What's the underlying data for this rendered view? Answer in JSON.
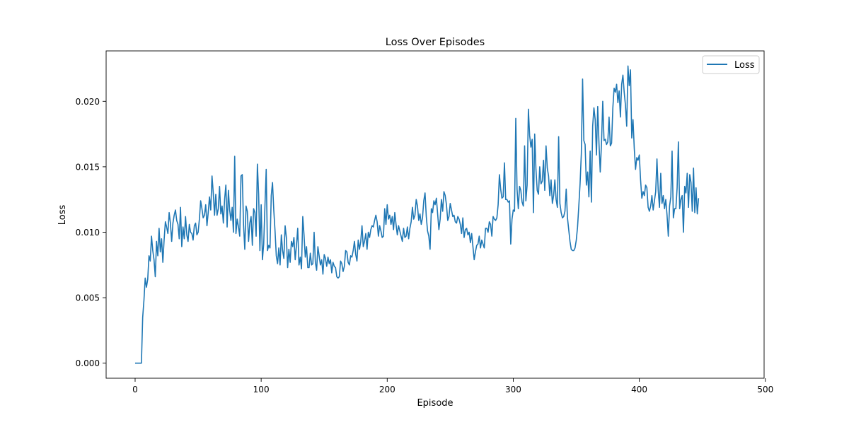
{
  "chart_data": {
    "type": "line",
    "title": "Loss Over Episodes",
    "xlabel": "Episode",
    "ylabel": "Loss",
    "xlim": [
      -23,
      499
    ],
    "ylim": [
      -0.00115,
      0.02385
    ],
    "xticks": [
      0,
      100,
      200,
      300,
      400,
      500
    ],
    "xtick_labels": [
      "0",
      "100",
      "200",
      "300",
      "400",
      "500"
    ],
    "yticks": [
      0.0,
      0.005,
      0.01,
      0.015,
      0.02
    ],
    "ytick_labels": [
      "0.000",
      "0.005",
      "0.010",
      "0.015",
      "0.020"
    ],
    "grid": false,
    "legend": {
      "position": "top-right",
      "entries": [
        "Loss"
      ]
    },
    "series": [
      {
        "name": "Loss",
        "color": "#1f77b4",
        "x_start": 0,
        "x_step": 1,
        "values": [
          0.0,
          0.0,
          0.0,
          0.0,
          0.0,
          0.0,
          0.0035,
          0.0048,
          0.0065,
          0.0058,
          0.0064,
          0.0082,
          0.0078,
          0.0097,
          0.0086,
          0.0079,
          0.0066,
          0.0093,
          0.0082,
          0.0103,
          0.0085,
          0.0095,
          0.0077,
          0.0094,
          0.0108,
          0.0104,
          0.0099,
          0.0115,
          0.0107,
          0.0093,
          0.0107,
          0.0113,
          0.0117,
          0.0109,
          0.0106,
          0.0095,
          0.0119,
          0.0089,
          0.0104,
          0.0095,
          0.0112,
          0.0098,
          0.0093,
          0.0106,
          0.01,
          0.0099,
          0.0094,
          0.0105,
          0.0107,
          0.0098,
          0.01,
          0.011,
          0.0124,
          0.0118,
          0.0111,
          0.0113,
          0.0121,
          0.0105,
          0.0115,
          0.0127,
          0.0117,
          0.0143,
          0.013,
          0.0113,
          0.0129,
          0.0113,
          0.0118,
          0.0135,
          0.0114,
          0.012,
          0.0107,
          0.0125,
          0.0136,
          0.0104,
          0.0132,
          0.0117,
          0.0109,
          0.0119,
          0.01,
          0.0158,
          0.0099,
          0.011,
          0.0104,
          0.0097,
          0.0143,
          0.0144,
          0.0106,
          0.0087,
          0.012,
          0.0116,
          0.0093,
          0.0107,
          0.0112,
          0.009,
          0.0118,
          0.0115,
          0.0097,
          0.0152,
          0.0129,
          0.0086,
          0.0121,
          0.0079,
          0.0091,
          0.012,
          0.0148,
          0.0086,
          0.009,
          0.0088,
          0.0128,
          0.0138,
          0.0117,
          0.0101,
          0.0082,
          0.0076,
          0.0088,
          0.0075,
          0.0098,
          0.0086,
          0.008,
          0.0105,
          0.0096,
          0.0073,
          0.0087,
          0.0077,
          0.0093,
          0.0089,
          0.0096,
          0.0079,
          0.009,
          0.0103,
          0.0075,
          0.0081,
          0.0072,
          0.0112,
          0.0098,
          0.0081,
          0.0089,
          0.0073,
          0.0073,
          0.0084,
          0.0075,
          0.0076,
          0.01,
          0.0077,
          0.0071,
          0.0089,
          0.0082,
          0.0075,
          0.0079,
          0.0068,
          0.0083,
          0.008,
          0.0074,
          0.0081,
          0.0076,
          0.0079,
          0.0069,
          0.0077,
          0.0074,
          0.0073,
          0.0066,
          0.0065,
          0.0066,
          0.0078,
          0.0076,
          0.007,
          0.0074,
          0.0086,
          0.0085,
          0.0077,
          0.0075,
          0.0082,
          0.0081,
          0.0086,
          0.0093,
          0.0083,
          0.0078,
          0.0094,
          0.0087,
          0.0093,
          0.0105,
          0.0089,
          0.0093,
          0.0099,
          0.0087,
          0.01,
          0.0096,
          0.0102,
          0.0105,
          0.0104,
          0.0109,
          0.0113,
          0.0108,
          0.0097,
          0.0105,
          0.0101,
          0.0096,
          0.0097,
          0.0118,
          0.0106,
          0.0121,
          0.011,
          0.0113,
          0.0106,
          0.0112,
          0.0102,
          0.0115,
          0.0106,
          0.0098,
          0.0105,
          0.0101,
          0.0097,
          0.0093,
          0.0103,
          0.0096,
          0.0097,
          0.0104,
          0.0095,
          0.0103,
          0.0108,
          0.0119,
          0.011,
          0.0113,
          0.0125,
          0.012,
          0.0109,
          0.0114,
          0.0106,
          0.0111,
          0.0124,
          0.013,
          0.0112,
          0.0101,
          0.0097,
          0.0087,
          0.0118,
          0.0115,
          0.0124,
          0.0121,
          0.0126,
          0.0114,
          0.0102,
          0.011,
          0.0125,
          0.0116,
          0.0131,
          0.0128,
          0.0121,
          0.0109,
          0.0112,
          0.0122,
          0.0117,
          0.0112,
          0.0113,
          0.0108,
          0.0107,
          0.0112,
          0.011,
          0.0106,
          0.0099,
          0.0111,
          0.0096,
          0.0102,
          0.0103,
          0.0098,
          0.01,
          0.0092,
          0.0099,
          0.0089,
          0.0079,
          0.0085,
          0.009,
          0.0091,
          0.0097,
          0.0088,
          0.0094,
          0.0091,
          0.0088,
          0.0103,
          0.0103,
          0.01,
          0.0108,
          0.0106,
          0.0097,
          0.0112,
          0.011,
          0.0109,
          0.0111,
          0.0121,
          0.0144,
          0.0133,
          0.0126,
          0.0127,
          0.0153,
          0.0125,
          0.0125,
          0.0123,
          0.0124,
          0.0091,
          0.011,
          0.0117,
          0.0116,
          0.0187,
          0.0133,
          0.0118,
          0.0135,
          0.0132,
          0.0123,
          0.012,
          0.0166,
          0.0124,
          0.0136,
          0.0194,
          0.0174,
          0.0165,
          0.0171,
          0.0115,
          0.0175,
          0.0148,
          0.0132,
          0.0129,
          0.015,
          0.0137,
          0.0139,
          0.0155,
          0.0132,
          0.0166,
          0.0149,
          0.0143,
          0.0128,
          0.014,
          0.0122,
          0.0128,
          0.014,
          0.0125,
          0.0119,
          0.0173,
          0.0122,
          0.0115,
          0.0111,
          0.0112,
          0.0116,
          0.0133,
          0.0111,
          0.0102,
          0.0093,
          0.0087,
          0.0086,
          0.0086,
          0.0088,
          0.0094,
          0.0104,
          0.012,
          0.0137,
          0.016,
          0.0217,
          0.017,
          0.0167,
          0.0136,
          0.0146,
          0.0127,
          0.0162,
          0.0123,
          0.0181,
          0.0195,
          0.0186,
          0.0159,
          0.0196,
          0.0168,
          0.0146,
          0.0168,
          0.02,
          0.017,
          0.0171,
          0.0167,
          0.0169,
          0.0188,
          0.0166,
          0.0168,
          0.0195,
          0.021,
          0.0207,
          0.0213,
          0.0199,
          0.0208,
          0.0188,
          0.0213,
          0.022,
          0.0207,
          0.0197,
          0.0181,
          0.0227,
          0.0212,
          0.0224,
          0.0172,
          0.0186,
          0.0164,
          0.0148,
          0.0157,
          0.0155,
          0.0159,
          0.014,
          0.0126,
          0.0131,
          0.0128,
          0.0136,
          0.0134,
          0.0119,
          0.0116,
          0.012,
          0.0128,
          0.0117,
          0.0124,
          0.0131,
          0.0156,
          0.0132,
          0.0119,
          0.0145,
          0.0122,
          0.0128,
          0.0118,
          0.0125,
          0.0113,
          0.0097,
          0.012,
          0.0127,
          0.0162,
          0.0111,
          0.0118,
          0.0118,
          0.0134,
          0.0169,
          0.0118,
          0.0125,
          0.0128,
          0.01,
          0.0135,
          0.013,
          0.0145,
          0.0119,
          0.0144,
          0.0138,
          0.0116,
          0.0149,
          0.0115,
          0.0134,
          0.0114,
          0.0126
        ]
      }
    ]
  }
}
